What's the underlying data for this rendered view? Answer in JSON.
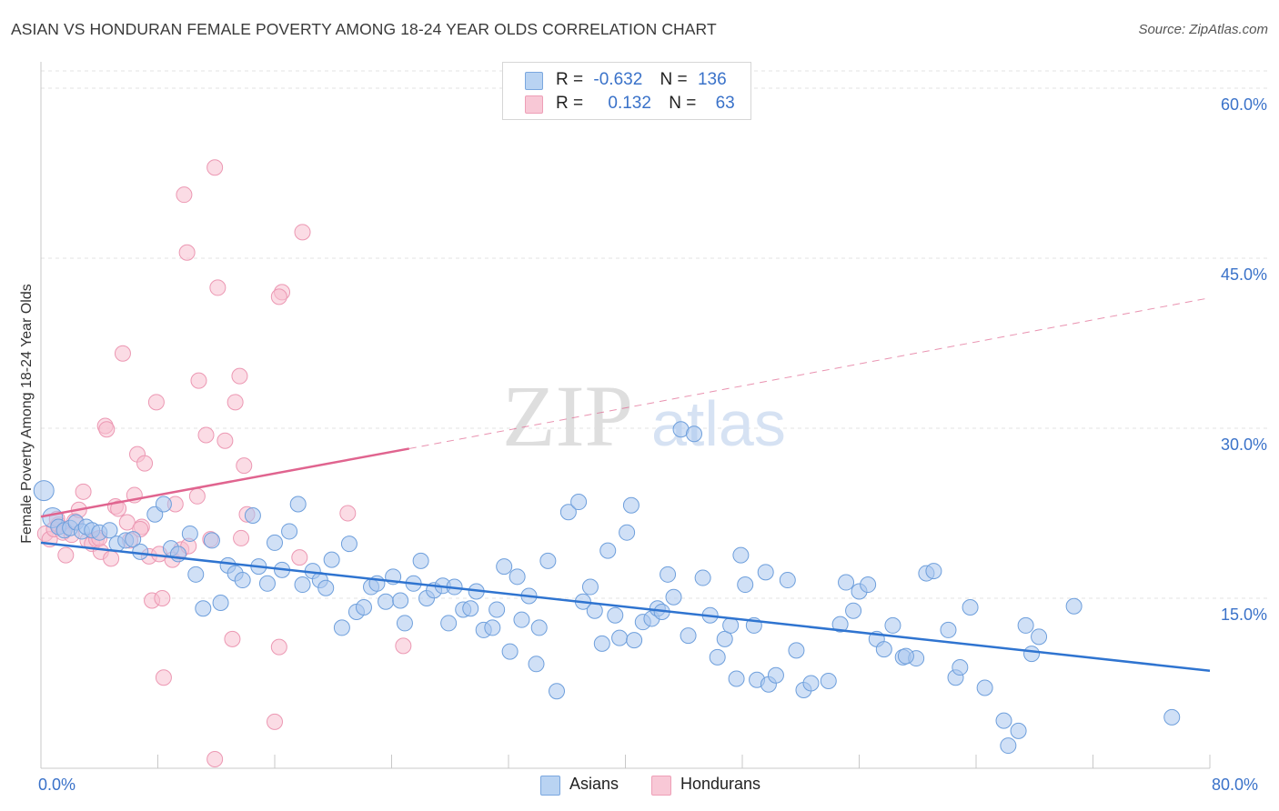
{
  "header": {
    "title": "ASIAN VS HONDURAN FEMALE POVERTY AMONG 18-24 YEAR OLDS CORRELATION CHART",
    "source": "Source: ZipAtlas.com"
  },
  "watermark": {
    "zip": "ZIP",
    "atlas": "atlas"
  },
  "legend": {
    "rows": [
      {
        "r_label": "R =",
        "r_value": "-0.632",
        "n_label": "N =",
        "n_value": "136"
      },
      {
        "r_label": "R =",
        "r_value": "0.132",
        "n_label": "N =",
        "n_value": "63"
      }
    ],
    "bottom": [
      "Asians",
      "Hondurans"
    ]
  },
  "colors": {
    "asian_fill": "#a9c7ee",
    "asian_stroke": "#6e9fdc",
    "asian_line": "#2f74d0",
    "honduran_fill": "#f7bfd0",
    "honduran_stroke": "#ec98b3",
    "honduran_line": "#e0648f",
    "tick_text": "#3a72c9"
  },
  "chart_data": {
    "type": "scatter",
    "title": "ASIAN VS HONDURAN FEMALE POVERTY AMONG 18-24 YEAR OLDS CORRELATION CHART",
    "xlabel": "",
    "ylabel": "Female Poverty Among 18-24 Year Olds",
    "xlim": [
      0,
      80
    ],
    "ylim": [
      0,
      65
    ],
    "x_tick_labels": [
      "0.0%",
      "80.0%"
    ],
    "y_ticks": [
      15,
      30,
      45,
      60
    ],
    "y_tick_labels": [
      "15.0%",
      "30.0%",
      "45.0%",
      "60.0%"
    ],
    "grid": true,
    "legend_position": "top-center",
    "series": [
      {
        "name": "Asians",
        "r": -0.632,
        "n": 136,
        "trend": {
          "x": [
            0,
            80
          ],
          "y": [
            19.9,
            8.6
          ],
          "style": "solid"
        },
        "points": [
          [
            0.2,
            24.5
          ],
          [
            0.8,
            22.1
          ],
          [
            1.2,
            21.3
          ],
          [
            1.6,
            21.0
          ],
          [
            2.0,
            21.2
          ],
          [
            2.4,
            21.7
          ],
          [
            2.8,
            20.9
          ],
          [
            3.1,
            21.3
          ],
          [
            3.5,
            21.0
          ],
          [
            4.0,
            20.8
          ],
          [
            4.7,
            21.0
          ],
          [
            5.2,
            19.8
          ],
          [
            5.8,
            20.1
          ],
          [
            6.3,
            20.2
          ],
          [
            6.8,
            19.1
          ],
          [
            7.8,
            22.4
          ],
          [
            8.4,
            23.3
          ],
          [
            8.9,
            19.4
          ],
          [
            9.4,
            18.9
          ],
          [
            10.2,
            20.7
          ],
          [
            10.6,
            17.1
          ],
          [
            11.1,
            14.1
          ],
          [
            11.7,
            20.1
          ],
          [
            12.3,
            14.6
          ],
          [
            12.8,
            17.9
          ],
          [
            13.3,
            17.2
          ],
          [
            13.8,
            16.6
          ],
          [
            14.5,
            22.3
          ],
          [
            14.9,
            17.8
          ],
          [
            15.5,
            16.3
          ],
          [
            16.0,
            19.9
          ],
          [
            16.5,
            17.5
          ],
          [
            17.0,
            20.9
          ],
          [
            17.6,
            23.3
          ],
          [
            17.9,
            16.2
          ],
          [
            18.6,
            17.4
          ],
          [
            19.1,
            16.6
          ],
          [
            19.5,
            15.9
          ],
          [
            19.9,
            18.4
          ],
          [
            20.6,
            12.4
          ],
          [
            21.1,
            19.8
          ],
          [
            21.6,
            13.8
          ],
          [
            22.1,
            14.2
          ],
          [
            22.6,
            16.0
          ],
          [
            23.0,
            16.3
          ],
          [
            23.6,
            14.7
          ],
          [
            24.1,
            16.9
          ],
          [
            24.6,
            14.8
          ],
          [
            24.9,
            12.8
          ],
          [
            25.5,
            16.3
          ],
          [
            26.0,
            18.3
          ],
          [
            26.4,
            15.0
          ],
          [
            26.9,
            15.7
          ],
          [
            27.5,
            16.1
          ],
          [
            27.9,
            12.8
          ],
          [
            28.3,
            16.0
          ],
          [
            28.9,
            14.0
          ],
          [
            29.4,
            14.1
          ],
          [
            29.8,
            15.6
          ],
          [
            30.3,
            12.2
          ],
          [
            30.9,
            12.4
          ],
          [
            31.2,
            14.0
          ],
          [
            31.7,
            17.8
          ],
          [
            32.1,
            10.3
          ],
          [
            32.6,
            16.9
          ],
          [
            32.9,
            13.1
          ],
          [
            33.4,
            15.2
          ],
          [
            33.9,
            9.2
          ],
          [
            34.1,
            12.4
          ],
          [
            34.7,
            18.3
          ],
          [
            35.3,
            6.8
          ],
          [
            36.1,
            22.6
          ],
          [
            36.8,
            23.5
          ],
          [
            37.1,
            14.7
          ],
          [
            37.6,
            16.0
          ],
          [
            37.9,
            13.9
          ],
          [
            38.4,
            11.0
          ],
          [
            38.8,
            19.2
          ],
          [
            39.3,
            13.5
          ],
          [
            39.6,
            11.5
          ],
          [
            40.1,
            20.8
          ],
          [
            40.4,
            23.2
          ],
          [
            40.6,
            11.3
          ],
          [
            41.2,
            12.9
          ],
          [
            41.8,
            13.2
          ],
          [
            42.2,
            14.1
          ],
          [
            42.5,
            13.8
          ],
          [
            42.9,
            17.1
          ],
          [
            43.3,
            15.1
          ],
          [
            43.8,
            29.9
          ],
          [
            44.3,
            11.7
          ],
          [
            44.7,
            29.5
          ],
          [
            45.3,
            16.8
          ],
          [
            45.8,
            13.5
          ],
          [
            46.3,
            9.8
          ],
          [
            46.8,
            11.4
          ],
          [
            47.2,
            12.6
          ],
          [
            47.6,
            7.9
          ],
          [
            47.9,
            18.8
          ],
          [
            48.2,
            16.2
          ],
          [
            48.8,
            12.6
          ],
          [
            49.0,
            7.8
          ],
          [
            49.6,
            17.3
          ],
          [
            49.8,
            7.4
          ],
          [
            50.3,
            8.2
          ],
          [
            51.1,
            16.6
          ],
          [
            51.7,
            10.4
          ],
          [
            52.2,
            6.9
          ],
          [
            52.7,
            7.5
          ],
          [
            53.9,
            7.7
          ],
          [
            54.7,
            12.7
          ],
          [
            55.1,
            16.4
          ],
          [
            55.6,
            13.9
          ],
          [
            56.0,
            15.6
          ],
          [
            56.6,
            16.2
          ],
          [
            57.2,
            11.4
          ],
          [
            57.7,
            10.5
          ],
          [
            58.3,
            12.6
          ],
          [
            59.0,
            9.8
          ],
          [
            59.9,
            9.7
          ],
          [
            60.6,
            17.2
          ],
          [
            61.1,
            17.4
          ],
          [
            62.1,
            12.2
          ],
          [
            62.6,
            8.0
          ],
          [
            62.9,
            8.9
          ],
          [
            63.6,
            14.2
          ],
          [
            64.6,
            7.1
          ],
          [
            65.9,
            4.2
          ],
          [
            66.2,
            2.0
          ],
          [
            66.9,
            3.3
          ],
          [
            67.4,
            12.6
          ],
          [
            67.8,
            10.1
          ],
          [
            68.3,
            11.6
          ],
          [
            70.7,
            14.3
          ],
          [
            77.4,
            4.5
          ],
          [
            59.2,
            9.9
          ]
        ]
      },
      {
        "name": "Hondurans",
        "r": 0.132,
        "n": 63,
        "trend": {
          "x": [
            0,
            25.2
          ],
          "y": [
            22.2,
            28.2
          ],
          "style": "solid",
          "extended_to": [
            80,
            41.5
          ],
          "extended_style": "dashed"
        },
        "points": [
          [
            0.3,
            20.7
          ],
          [
            0.6,
            20.2
          ],
          [
            0.9,
            21.1
          ],
          [
            1.2,
            21.5
          ],
          [
            1.5,
            20.8
          ],
          [
            1.7,
            18.8
          ],
          [
            2.1,
            20.6
          ],
          [
            2.3,
            21.8
          ],
          [
            2.6,
            22.8
          ],
          [
            2.9,
            24.4
          ],
          [
            3.2,
            20.1
          ],
          [
            3.5,
            19.8
          ],
          [
            3.8,
            20.2
          ],
          [
            4.1,
            19.1
          ],
          [
            4.4,
            30.2
          ],
          [
            4.5,
            29.9
          ],
          [
            4.8,
            18.5
          ],
          [
            5.1,
            23.1
          ],
          [
            5.3,
            22.9
          ],
          [
            5.6,
            36.6
          ],
          [
            5.9,
            21.7
          ],
          [
            6.1,
            20.1
          ],
          [
            6.4,
            24.1
          ],
          [
            6.6,
            27.7
          ],
          [
            6.9,
            21.3
          ],
          [
            7.1,
            26.9
          ],
          [
            7.4,
            18.7
          ],
          [
            7.6,
            14.8
          ],
          [
            7.9,
            32.3
          ],
          [
            8.1,
            18.9
          ],
          [
            8.3,
            15.0
          ],
          [
            8.4,
            8.0
          ],
          [
            9.0,
            18.4
          ],
          [
            9.2,
            23.3
          ],
          [
            9.6,
            19.3
          ],
          [
            9.8,
            50.6
          ],
          [
            10.0,
            45.5
          ],
          [
            10.1,
            19.6
          ],
          [
            10.7,
            24.0
          ],
          [
            10.8,
            34.2
          ],
          [
            11.3,
            29.4
          ],
          [
            11.6,
            20.2
          ],
          [
            11.9,
            0.8
          ],
          [
            11.9,
            53.0
          ],
          [
            12.1,
            42.4
          ],
          [
            12.6,
            28.9
          ],
          [
            13.1,
            11.4
          ],
          [
            13.3,
            32.3
          ],
          [
            13.6,
            34.6
          ],
          [
            13.9,
            26.7
          ],
          [
            14.1,
            22.4
          ],
          [
            16.0,
            4.1
          ],
          [
            16.3,
            10.7
          ],
          [
            16.5,
            42.0
          ],
          [
            17.7,
            18.6
          ],
          [
            17.9,
            47.3
          ],
          [
            21.0,
            22.5
          ],
          [
            24.8,
            10.8
          ],
          [
            13.7,
            20.3
          ],
          [
            6.8,
            21.1
          ],
          [
            4.0,
            20.3
          ],
          [
            1.1,
            22.0
          ],
          [
            16.3,
            41.6
          ]
        ]
      }
    ]
  }
}
